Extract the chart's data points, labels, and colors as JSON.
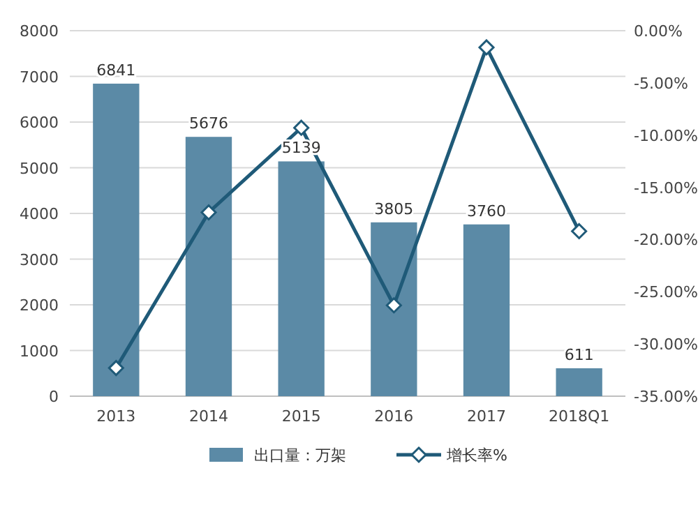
{
  "chart_data": {
    "type": "bar",
    "categories": [
      "2013",
      "2014",
      "2015",
      "2016",
      "2017",
      "2018Q1"
    ],
    "series": [
      {
        "name": "出口量：万架",
        "color": "#5b8aa6",
        "values": [
          6841,
          5676,
          5139,
          3805,
          3760,
          611
        ],
        "value_labels": [
          "6841",
          "5676",
          "5139",
          "3805",
          "3760",
          "611"
        ]
      },
      {
        "name": "增长率%",
        "type": "line",
        "axis": "y2",
        "color": "#1f5a78",
        "marker": "diamond",
        "values": [
          -32.3,
          -17.4,
          -9.3,
          -26.3,
          -1.6,
          -19.2
        ]
      }
    ],
    "ylim": [
      0,
      8000
    ],
    "yticks": [
      0,
      1000,
      2000,
      3000,
      4000,
      5000,
      6000,
      7000,
      8000
    ],
    "y2lim": [
      -35,
      0
    ],
    "y2ticks": [
      {
        "value": 0,
        "label": "0.00%"
      },
      {
        "value": -5,
        "label": "-5.00%"
      },
      {
        "value": -10,
        "label": "-10.00%"
      },
      {
        "value": -15,
        "label": "-15.00%"
      },
      {
        "value": -20,
        "label": "-20.00%"
      },
      {
        "value": -25,
        "label": "-25.00%"
      },
      {
        "value": -30,
        "label": "-30.00%"
      },
      {
        "value": -35,
        "label": "-35.00%"
      }
    ],
    "grid": "y",
    "legend": "bottom"
  }
}
